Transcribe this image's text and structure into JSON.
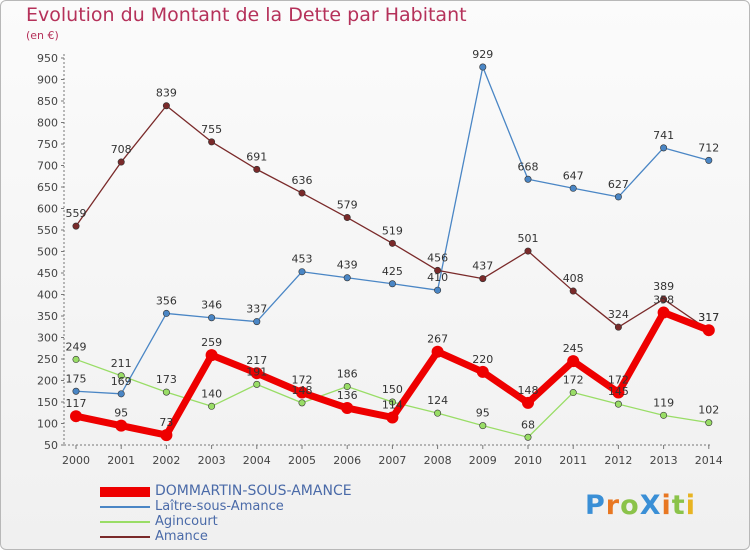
{
  "title": "Evolution du Montant de la Dette par Habitant",
  "subtitle": "(en €)",
  "logo_text": "ProXiti",
  "chart_data": {
    "type": "line",
    "title": "Evolution du Montant de la Dette par Habitant",
    "subtitle": "(en €)",
    "xlabel": "",
    "ylabel": "",
    "x": [
      "2000",
      "2001",
      "2002",
      "2003",
      "2004",
      "2005",
      "2006",
      "2007",
      "2008",
      "2009",
      "2010",
      "2011",
      "2012",
      "2013",
      "2014"
    ],
    "ylim": [
      50,
      950
    ],
    "yticks": [
      50,
      100,
      150,
      200,
      250,
      300,
      350,
      400,
      450,
      500,
      550,
      600,
      650,
      700,
      750,
      800,
      850,
      900,
      950
    ],
    "grid": false,
    "legend_position": "bottom-left",
    "series": [
      {
        "name": "DOMMARTIN-SOUS-AMANCE",
        "color": "#ee0000",
        "values": [
          117,
          95,
          73,
          259,
          217,
          172,
          136,
          114,
          267,
          220,
          148,
          245,
          172,
          358,
          317
        ]
      },
      {
        "name": "Laître-sous-Amance",
        "color": "#4a86c5",
        "values": [
          175,
          169,
          356,
          346,
          337,
          453,
          439,
          425,
          410,
          929,
          668,
          647,
          627,
          741,
          712
        ]
      },
      {
        "name": "Agincourt",
        "color": "#99dd66",
        "values": [
          249,
          211,
          173,
          140,
          191,
          148,
          186,
          150,
          124,
          95,
          68,
          172,
          145,
          119,
          102
        ]
      },
      {
        "name": "Amance",
        "color": "#7a2a2a",
        "values": [
          559,
          708,
          839,
          755,
          691,
          636,
          579,
          519,
          456,
          437,
          501,
          408,
          324,
          389,
          317
        ]
      }
    ]
  }
}
